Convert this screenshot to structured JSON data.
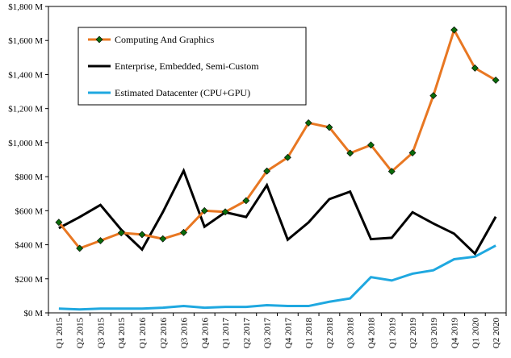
{
  "chart_data": {
    "type": "line",
    "categories": [
      "Q1 2015",
      "Q2 2015",
      "Q3 2015",
      "Q4 2015",
      "Q1 2016",
      "Q2 2016",
      "Q3 2016",
      "Q4 2016",
      "Q1 2017",
      "Q2 2017",
      "Q3 2017",
      "Q4 2017",
      "Q1 2018",
      "Q2 2018",
      "Q3 2018",
      "Q4 2018",
      "Q1 2019",
      "Q2 2019",
      "Q3 2019",
      "Q4 2019",
      "Q1 2020",
      "Q2 2020"
    ],
    "series": [
      {
        "name": "Computing And Graphics",
        "color": "#E87722",
        "marker": "diamond",
        "marker_fill": "#0a6b0a",
        "values": [
          532,
          379,
          424,
          470,
          460,
          435,
          472,
          600,
          593,
          659,
          833,
          913,
          1116,
          1090,
          938,
          986,
          831,
          940,
          1276,
          1662,
          1438,
          1367
        ]
      },
      {
        "name": "Enterprise, Embedded, Semi-Custom",
        "color": "#000000",
        "marker": "none",
        "values": [
          498,
          563,
          634,
          488,
          372,
          592,
          835,
          506,
          591,
          563,
          750,
          430,
          531,
          668,
          712,
          433,
          441,
          591,
          525,
          465,
          348,
          565
        ]
      },
      {
        "name": "Estimated Datacenter (CPU+GPU)",
        "color": "#1FA8E0",
        "marker": "none",
        "values": [
          25,
          20,
          25,
          25,
          25,
          30,
          40,
          30,
          35,
          35,
          45,
          40,
          40,
          65,
          85,
          210,
          190,
          230,
          250,
          315,
          330,
          395
        ]
      }
    ],
    "y_ticks": [
      "$0 M",
      "$200 M",
      "$400 M",
      "$600 M",
      "$800 M",
      "$1,000 M",
      "$1,200 M",
      "$1,400 M",
      "$1,600 M",
      "$1,800 M"
    ],
    "ylim": [
      0,
      1800
    ],
    "grid": false,
    "legend_position": "top-left (inside plot)"
  }
}
